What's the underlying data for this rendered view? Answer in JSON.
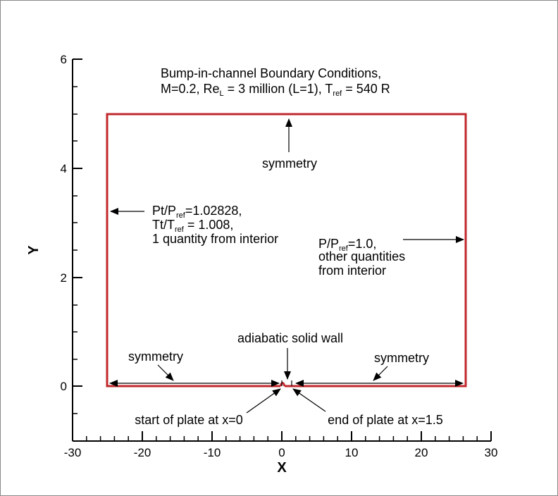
{
  "title": {
    "line1": "Bump-in-channel Boundary Conditions,",
    "line2_a": "M=0.2, Re",
    "line2_sub1": "L",
    "line2_b": " = 3 million (L=1), T",
    "line2_sub2": "ref",
    "line2_c": " = 540 R"
  },
  "axes": {
    "xlabel": "X",
    "ylabel": "Y",
    "xticks": [
      "-30",
      "-20",
      "-10",
      "0",
      "10",
      "20",
      "30"
    ],
    "yticks": [
      "0",
      "2",
      "4",
      "6"
    ]
  },
  "labels": {
    "top_symmetry": "symmetry",
    "inlet_l1_a": "Pt/P",
    "inlet_l1_sub": "ref",
    "inlet_l1_b": "=1.02828,",
    "inlet_l2_a": "Tt/T",
    "inlet_l2_sub": "ref",
    "inlet_l2_b": " = 1.008,",
    "inlet_l3": "1 quantity from interior",
    "outlet_l1_a": "P/P",
    "outlet_l1_sub": "ref",
    "outlet_l1_b": "=1.0,",
    "outlet_l2": "other quantities",
    "outlet_l3": "from interior",
    "wall": "adiabatic solid wall",
    "left_symmetry": "symmetry",
    "right_symmetry": "symmetry",
    "plate_start": "start of plate at x=0",
    "plate_end": "end of plate at x=1.5"
  },
  "colors": {
    "boundary": "#c0282d",
    "axis": "#000000"
  }
}
